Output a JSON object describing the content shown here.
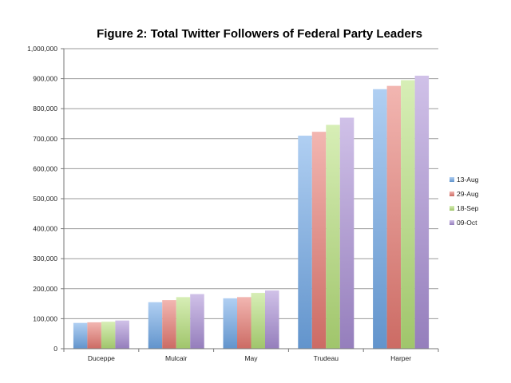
{
  "chart_data": {
    "type": "bar",
    "title": "Figure 2: Total Twitter Followers of Federal Party Leaders",
    "xlabel": "",
    "ylabel": "",
    "ylim": [
      0,
      1000000
    ],
    "yticks": [
      0,
      100000,
      200000,
      300000,
      400000,
      500000,
      600000,
      700000,
      800000,
      900000,
      1000000
    ],
    "ytick_labels": [
      "0",
      "100,000",
      "200,000",
      "300,000",
      "400,000",
      "500,000",
      "600,000",
      "700,000",
      "800,000",
      "900,000",
      "1,000,000"
    ],
    "grid": true,
    "legend_position": "right",
    "categories": [
      "Duceppe",
      "Mulcair",
      "May",
      "Trudeau",
      "Harper"
    ],
    "series": [
      {
        "name": "13-Aug",
        "color": "#6fa8e8",
        "values": [
          86000,
          155000,
          168000,
          710000,
          865000
        ]
      },
      {
        "name": "29-Aug",
        "color": "#e87a72",
        "values": [
          88000,
          162000,
          172000,
          723000,
          876000
        ]
      },
      {
        "name": "18-Sep",
        "color": "#b6e07a",
        "values": [
          90000,
          172000,
          186000,
          746000,
          895000
        ]
      },
      {
        "name": "09-Oct",
        "color": "#a98fd6",
        "values": [
          94000,
          182000,
          194000,
          770000,
          910000
        ]
      }
    ]
  }
}
